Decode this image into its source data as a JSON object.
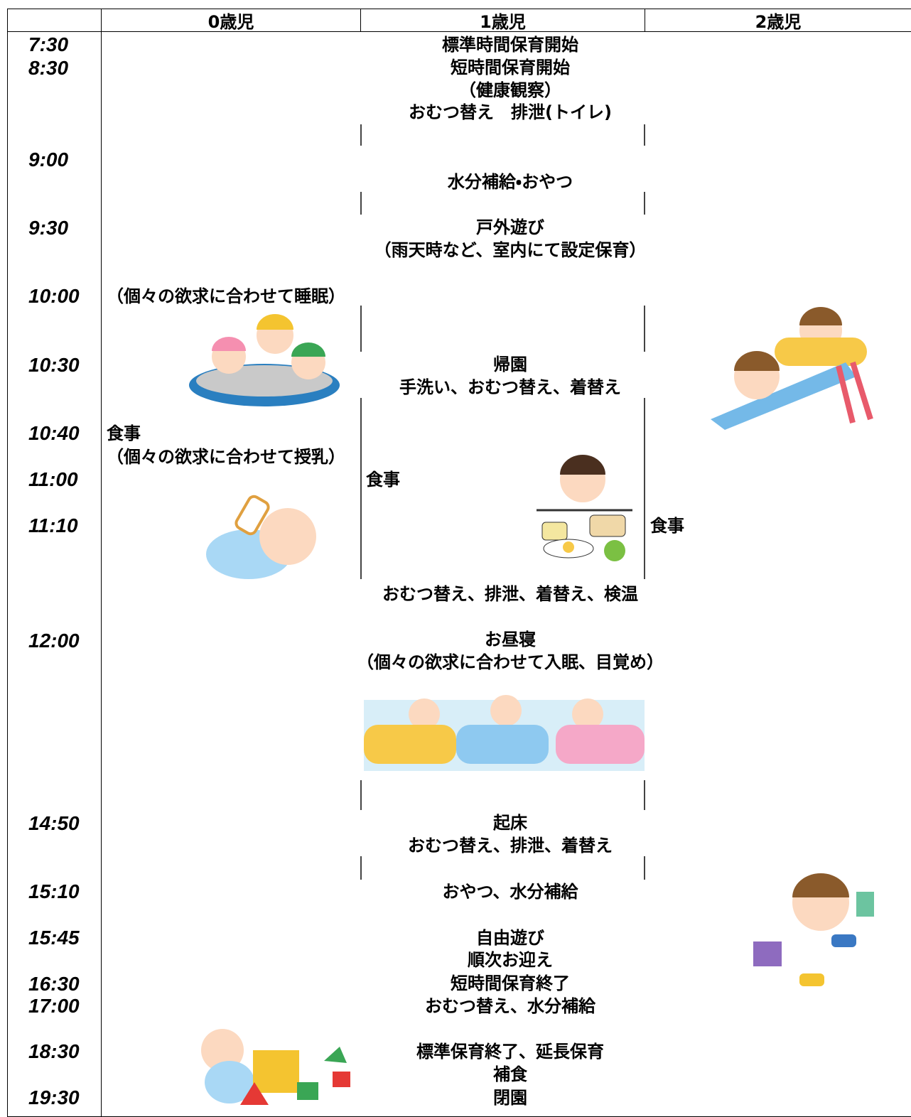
{
  "header": {
    "columns": [
      "0歳児",
      "1歳児",
      "2歳児"
    ]
  },
  "times": [
    "7:30",
    "8:30",
    "9:00",
    "9:30",
    "10:00",
    "10:30",
    "10:40",
    "11:00",
    "11:10",
    "12:00",
    "14:50",
    "15:10",
    "15:45",
    "16:30",
    "17:00",
    "18:30",
    "19:30"
  ],
  "activities": [
    "標準時間保育開始",
    "短時間保育開始",
    "（健康観察）",
    "おむつ替え　排泄(トイレ)",
    "水分補給・おやつ",
    "戸外遊び",
    "（雨天時など、室内にて設定保育）",
    "帰園",
    "手洗い、おむつ替え、着替え",
    "おむつ替え、排泄、着替え、検温",
    "お昼寝",
    "（個々の欲求に合わせて入眠、目覚め）",
    "起床",
    "おむつ替え、排泄、着替え",
    "おやつ、水分補給",
    "自由遊び",
    "順次お迎え",
    "短時間保育終了",
    "おむつ替え、水分補給",
    "標準保育終了、延長保育",
    "補食",
    "閉園"
  ],
  "age0_notes": [
    "（個々の欲求に合わせて睡眠）",
    "食事",
    "（個々の欲求に合わせて授乳）"
  ],
  "age1_notes": [
    "食事"
  ],
  "age2_notes": [
    "食事"
  ]
}
